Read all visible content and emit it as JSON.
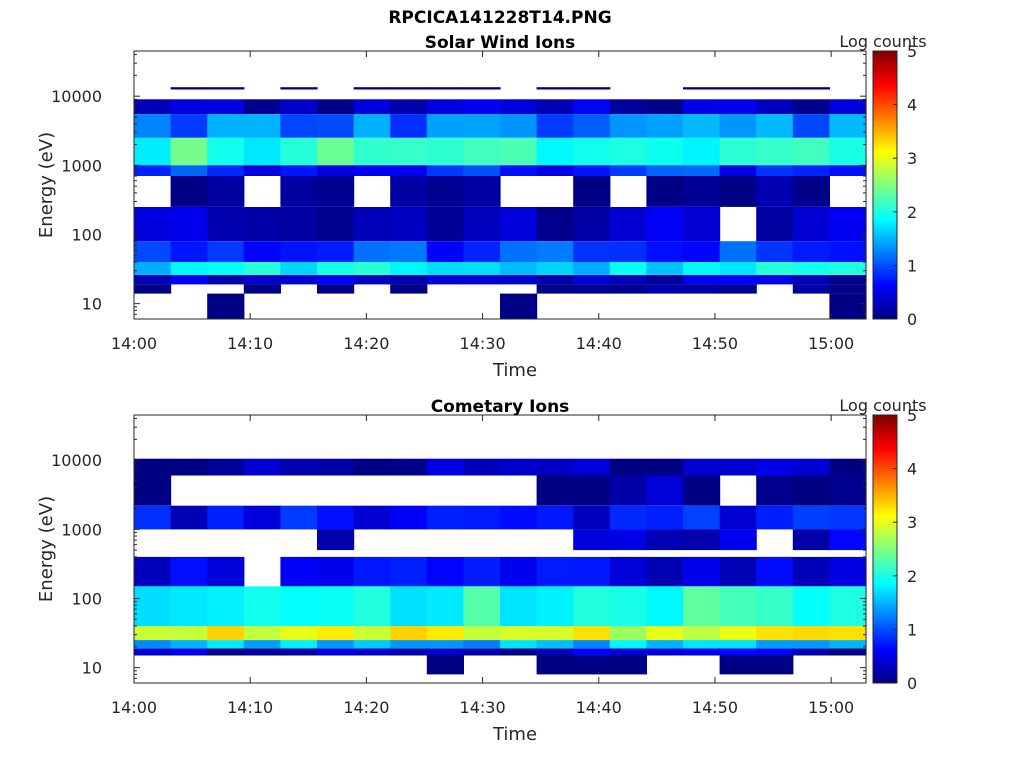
{
  "figure_title": "RPCICA141228T14.PNG",
  "chart_data": [
    {
      "type": "heatmap",
      "title": "Solar Wind Ions",
      "xlabel": "Time",
      "ylabel": "Energy (eV)",
      "x_ticks": [
        "14:00",
        "14:10",
        "14:20",
        "14:30",
        "14:40",
        "14:50",
        "15:00"
      ],
      "xlim": [
        "14:00",
        "15:03"
      ],
      "y_scale": "log",
      "y_ticks": [
        10,
        100,
        1000,
        10000
      ],
      "y_tick_labels": [
        "10",
        "100",
        "1000",
        "10000"
      ],
      "ylim": [
        6,
        45000
      ],
      "colorbar_label": "Log counts",
      "colorbar_ticks": [
        0,
        1,
        2,
        3,
        4,
        5
      ],
      "clim": [
        0,
        5
      ],
      "colormap": "jet",
      "time_bins": 20,
      "profile": [
        {
          "energy_eV": [
            12500,
            13500
          ],
          "log_counts": 0.1,
          "coverage": "sparse"
        },
        {
          "energy_eV": [
            5500,
            9000
          ],
          "log_counts": 0.3,
          "coverage": "full"
        },
        {
          "energy_eV": [
            2500,
            5500
          ],
          "log_counts": 1.2,
          "coverage": "full"
        },
        {
          "energy_eV": [
            1000,
            2500
          ],
          "log_counts": 2.1,
          "coverage": "full"
        },
        {
          "energy_eV": [
            700,
            1000
          ],
          "log_counts": 0.8,
          "coverage": "full"
        },
        {
          "energy_eV": [
            250,
            700
          ],
          "log_counts": 0.1,
          "coverage": "broken"
        },
        {
          "energy_eV": [
            80,
            250
          ],
          "log_counts": 0.3,
          "coverage": "mostly"
        },
        {
          "energy_eV": [
            40,
            80
          ],
          "log_counts": 0.9,
          "coverage": "full"
        },
        {
          "energy_eV": [
            26,
            40
          ],
          "log_counts": 1.8,
          "coverage": "full"
        },
        {
          "energy_eV": [
            19,
            26
          ],
          "log_counts": 0.4,
          "coverage": "full"
        },
        {
          "energy_eV": [
            14,
            19
          ],
          "log_counts": 0.1,
          "coverage": "partial"
        },
        {
          "energy_eV": [
            6,
            14
          ],
          "log_counts": 0.1,
          "coverage": "sparse"
        }
      ]
    },
    {
      "type": "heatmap",
      "title": "Cometary Ions",
      "xlabel": "Time",
      "ylabel": "Energy (eV)",
      "x_ticks": [
        "14:00",
        "14:10",
        "14:20",
        "14:30",
        "14:40",
        "14:50",
        "15:00"
      ],
      "xlim": [
        "14:00",
        "15:03"
      ],
      "y_scale": "log",
      "y_ticks": [
        10,
        100,
        1000,
        10000
      ],
      "y_tick_labels": [
        "10",
        "100",
        "1000",
        "10000"
      ],
      "ylim": [
        6,
        45000
      ],
      "colorbar_label": "Log counts",
      "colorbar_ticks": [
        0,
        1,
        2,
        3,
        4,
        5
      ],
      "clim": [
        0,
        5
      ],
      "colormap": "jet",
      "time_bins": 20,
      "profile": [
        {
          "energy_eV": [
            6000,
            10500
          ],
          "log_counts": 0.2,
          "coverage": "full"
        },
        {
          "energy_eV": [
            1000,
            2200
          ],
          "log_counts": 0.6,
          "coverage": "full"
        },
        {
          "energy_eV": [
            2200,
            6000
          ],
          "log_counts": 0.2,
          "coverage": "late"
        },
        {
          "energy_eV": [
            500,
            1000
          ],
          "log_counts": 0.5,
          "coverage": "late"
        },
        {
          "energy_eV": [
            150,
            400
          ],
          "log_counts": 0.5,
          "coverage": "mostly"
        },
        {
          "energy_eV": [
            40,
            150
          ],
          "log_counts": 2.0,
          "coverage": "full"
        },
        {
          "energy_eV": [
            25,
            40
          ],
          "log_counts": 3.0,
          "coverage": "full"
        },
        {
          "energy_eV": [
            19,
            25
          ],
          "log_counts": 1.5,
          "coverage": "full"
        },
        {
          "energy_eV": [
            15,
            19
          ],
          "log_counts": 0.3,
          "coverage": "full"
        },
        {
          "energy_eV": [
            8,
            15
          ],
          "log_counts": 0.1,
          "coverage": "sparse"
        }
      ]
    }
  ]
}
